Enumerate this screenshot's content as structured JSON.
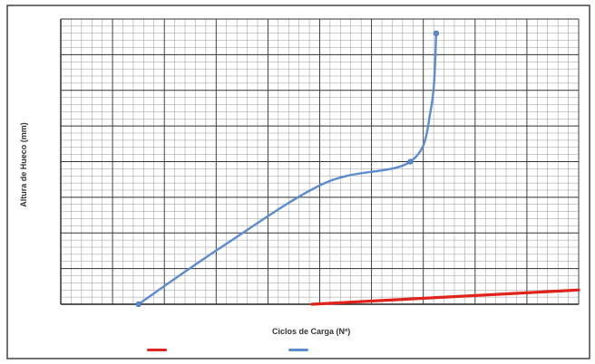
{
  "chart_data": {
    "type": "line",
    "title": "",
    "xlabel": "Ciclos de Carga (Nº)",
    "ylabel": "Altura de Hueco (mm)",
    "xlim": [
      0,
      20
    ],
    "ylim": [
      0,
      8
    ],
    "grid": true,
    "series": [
      {
        "color": "#5b8ccf",
        "marker": "circle",
        "points": [
          [
            3,
            0
          ],
          [
            6.2,
            1.6
          ],
          [
            10.2,
            3.4
          ],
          [
            13.5,
            4.0
          ],
          [
            14.3,
            5.5
          ],
          [
            14.5,
            7.6
          ]
        ],
        "marker_points": [
          [
            3,
            0
          ],
          [
            13.5,
            4.0
          ],
          [
            14.5,
            7.6
          ]
        ]
      },
      {
        "color": "#e0231b",
        "marker": "none",
        "points": [
          [
            9.7,
            0
          ],
          [
            20,
            0.4
          ]
        ]
      }
    ],
    "legend": {
      "placement": "bottom",
      "entries": [
        {
          "color": "#e0231b",
          "text": ""
        },
        {
          "color": "#5b8ccf",
          "text": ""
        }
      ]
    }
  }
}
